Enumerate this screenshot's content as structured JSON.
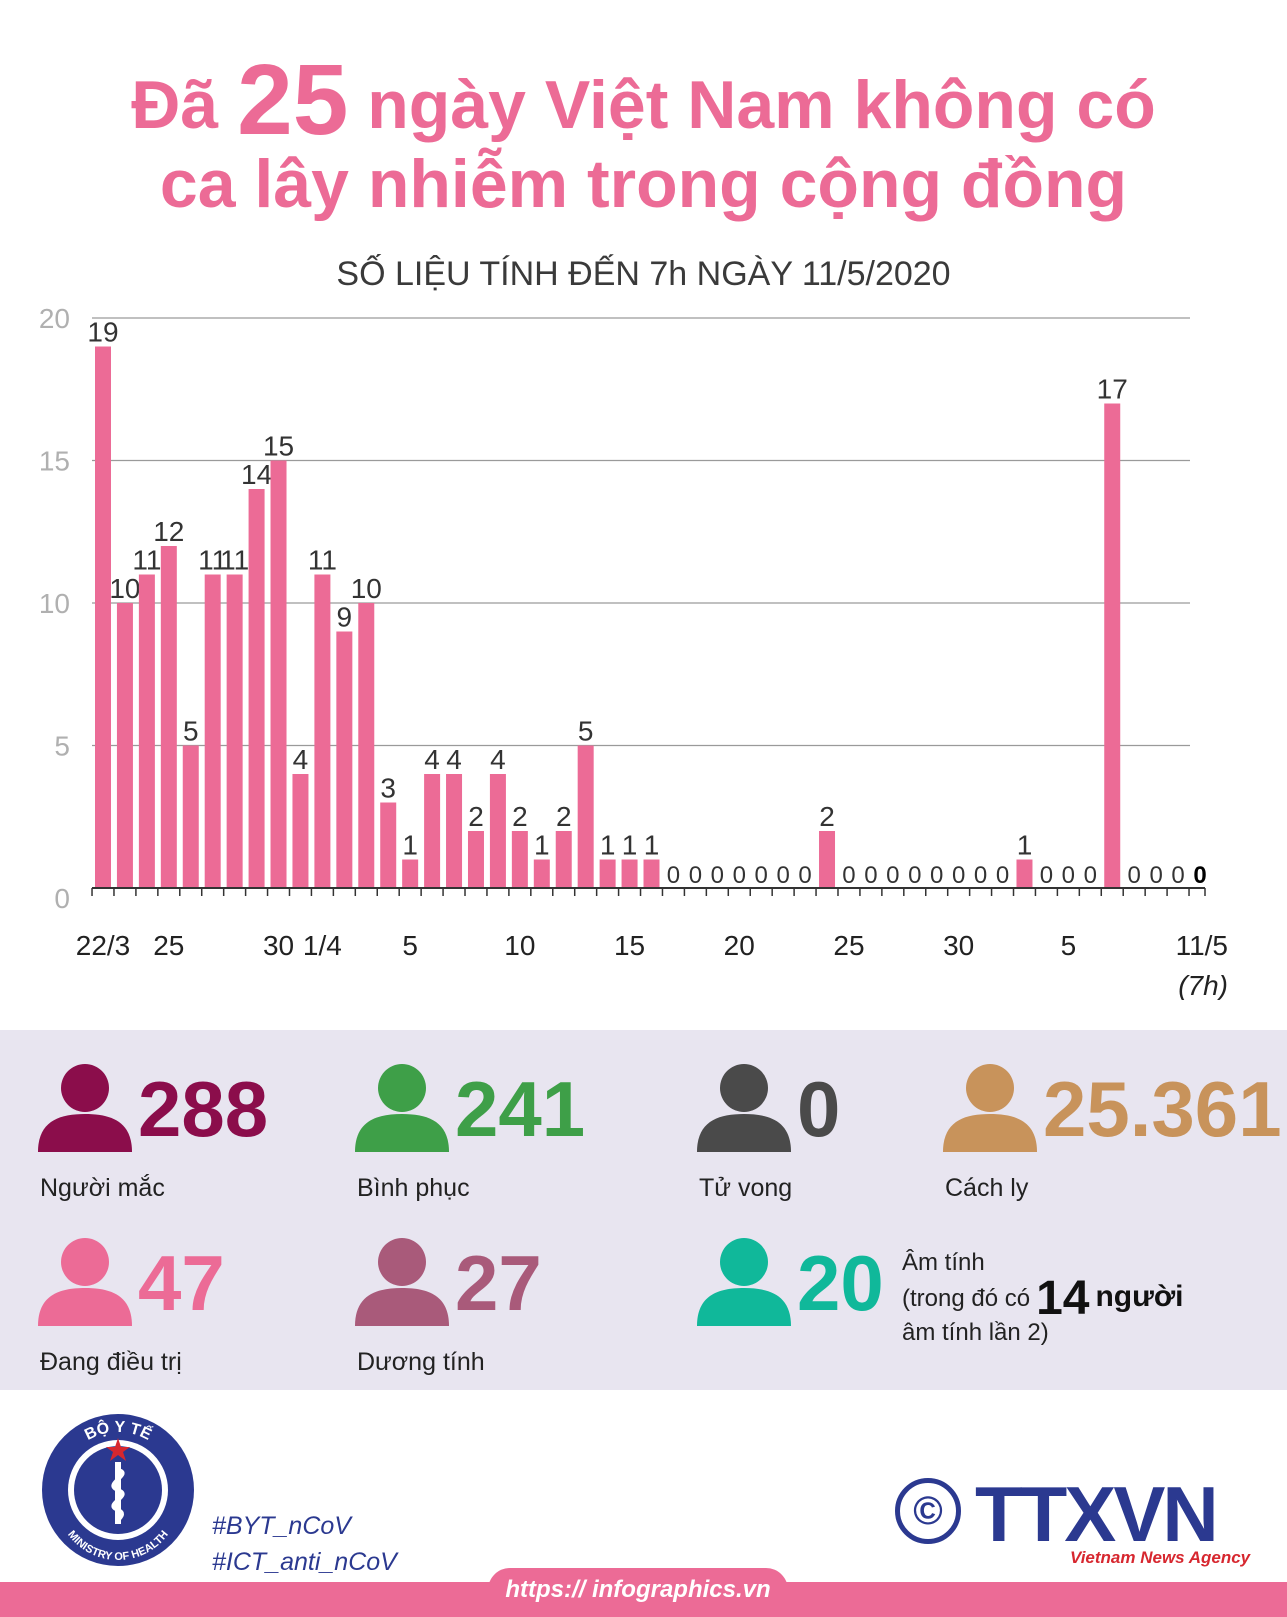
{
  "title": {
    "line1_prefix": "Đã",
    "line1_big": "25",
    "line1_suffix": "ngày Việt Nam không có",
    "line2": "ca lây nhiễm trong cộng đồng"
  },
  "subtitle": "SỐ LIỆU TÍNH ĐẾN 7h NGÀY 11/5/2020",
  "chart_data": {
    "type": "bar",
    "title": "",
    "xlabel": "",
    "ylabel": "",
    "ylim": [
      0,
      20
    ],
    "yticks": [
      0,
      5,
      10,
      15,
      20
    ],
    "grid": true,
    "bar_color": "#ec6b96",
    "categories": [
      "22/3",
      "23/3",
      "24/3",
      "25/3",
      "26/3",
      "27/3",
      "28/3",
      "29/3",
      "30/3",
      "31/3",
      "1/4",
      "2/4",
      "3/4",
      "4/4",
      "5/4",
      "6/4",
      "7/4",
      "8/4",
      "9/4",
      "10/4",
      "11/4",
      "12/4",
      "13/4",
      "14/4",
      "15/4",
      "16/4",
      "17/4",
      "18/4",
      "19/4",
      "20/4",
      "21/4",
      "22/4",
      "23/4",
      "24/4",
      "25/4",
      "26/4",
      "27/4",
      "28/4",
      "29/4",
      "30/4",
      "1/5",
      "2/5",
      "3/5",
      "4/5",
      "5/5",
      "6/5",
      "7/5",
      "8/5",
      "9/5",
      "10/5",
      "11/5"
    ],
    "values": [
      19,
      10,
      11,
      12,
      5,
      11,
      11,
      14,
      15,
      4,
      11,
      9,
      10,
      3,
      1,
      4,
      4,
      2,
      4,
      2,
      1,
      2,
      5,
      1,
      1,
      1,
      0,
      0,
      0,
      0,
      0,
      0,
      0,
      2,
      0,
      0,
      0,
      0,
      0,
      0,
      0,
      0,
      1,
      0,
      0,
      0,
      17,
      0,
      0,
      0,
      0
    ],
    "data_labels": [
      "19",
      "10",
      "11",
      "12",
      "5",
      "11",
      "11",
      "14",
      "15",
      "4",
      "11",
      "9",
      "10",
      "3",
      "1",
      "4",
      "4",
      "2",
      "4",
      "2",
      "1",
      "2",
      "5",
      "1",
      "1",
      "1",
      "0",
      "0",
      "0",
      "0",
      "0",
      "0",
      "0",
      "2",
      "0",
      "0",
      "0",
      "0",
      "0",
      "0",
      "0",
      "0",
      "1",
      "0",
      "0",
      "0",
      "17",
      "0",
      "0",
      "0",
      "0"
    ],
    "x_tick_labels": [
      {
        "index": 0,
        "label": "22/3"
      },
      {
        "index": 3,
        "label": "25"
      },
      {
        "index": 8,
        "label": "30"
      },
      {
        "index": 10,
        "label": "1/4"
      },
      {
        "index": 14,
        "label": "5"
      },
      {
        "index": 19,
        "label": "10"
      },
      {
        "index": 24,
        "label": "15"
      },
      {
        "index": 29,
        "label": "20"
      },
      {
        "index": 34,
        "label": "25"
      },
      {
        "index": 39,
        "label": "30"
      },
      {
        "index": 44,
        "label": "5"
      },
      {
        "index": 50,
        "label": "11/5"
      }
    ],
    "last_label_note": "(7h)"
  },
  "stats": {
    "infected": {
      "value": "288",
      "label": "Người mắc",
      "color": "#8b0d4b"
    },
    "recovered": {
      "value": "241",
      "label": "Bình phục",
      "color": "#3e9f48"
    },
    "deaths": {
      "value": "0",
      "label": "Tử vong",
      "color": "#4a4a4a"
    },
    "quarantine": {
      "value": "25.361",
      "label": "Cách ly",
      "color": "#c8935b"
    },
    "treating": {
      "value": "47",
      "label": "Đang điều trị",
      "color": "#ec6b96"
    },
    "positive": {
      "value": "27",
      "label": "Dương tính",
      "color": "#a95a7a"
    },
    "negative": {
      "value": "20",
      "label_line1": "Âm tính",
      "label_line2_prefix": "(trong đó có",
      "label_count": "14",
      "label_count_unit": "người",
      "label_line3": "âm tính lần 2)",
      "color": "#10b89a"
    }
  },
  "footer": {
    "ministry_top": "BỘ Y TẾ",
    "ministry_bottom": "MINISTRY OF HEALTH",
    "tag1": "#BYT_nCoV",
    "tag2": "#ICT_anti_nCoV",
    "url": "https:// infographics.vn",
    "brand": "TTXVN",
    "agency": "Vietnam News Agency",
    "copyright": "©"
  }
}
